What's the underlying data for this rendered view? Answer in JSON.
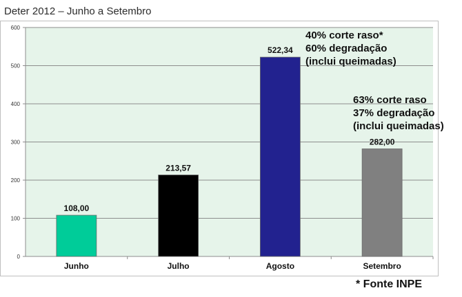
{
  "title": "Deter 2012 – Junho a Setembro",
  "chart_data": {
    "type": "bar",
    "categories": [
      "Junho",
      "Julho",
      "Agosto",
      "Setembro"
    ],
    "values": [
      108.0,
      213.57,
      522.34,
      282.0
    ],
    "value_labels": [
      "108,00",
      "213,57",
      "522,34",
      "282,00"
    ],
    "bar_colors": [
      "#00cc99",
      "#000000",
      "#22228f",
      "#808080"
    ],
    "plot_background": "#e6f4ea",
    "grid": true,
    "ylim": [
      0,
      600
    ],
    "yticks": [
      0,
      100,
      200,
      300,
      400,
      500,
      600
    ],
    "xlabel": "",
    "ylabel": ""
  },
  "annotations": {
    "agosto": [
      "40% corte raso*",
      "60% degradação",
      "(inclui queimadas)"
    ],
    "setembro": [
      "63% corte raso",
      "37% degradação",
      "(inclui queimadas)"
    ]
  },
  "source": "* Fonte INPE"
}
